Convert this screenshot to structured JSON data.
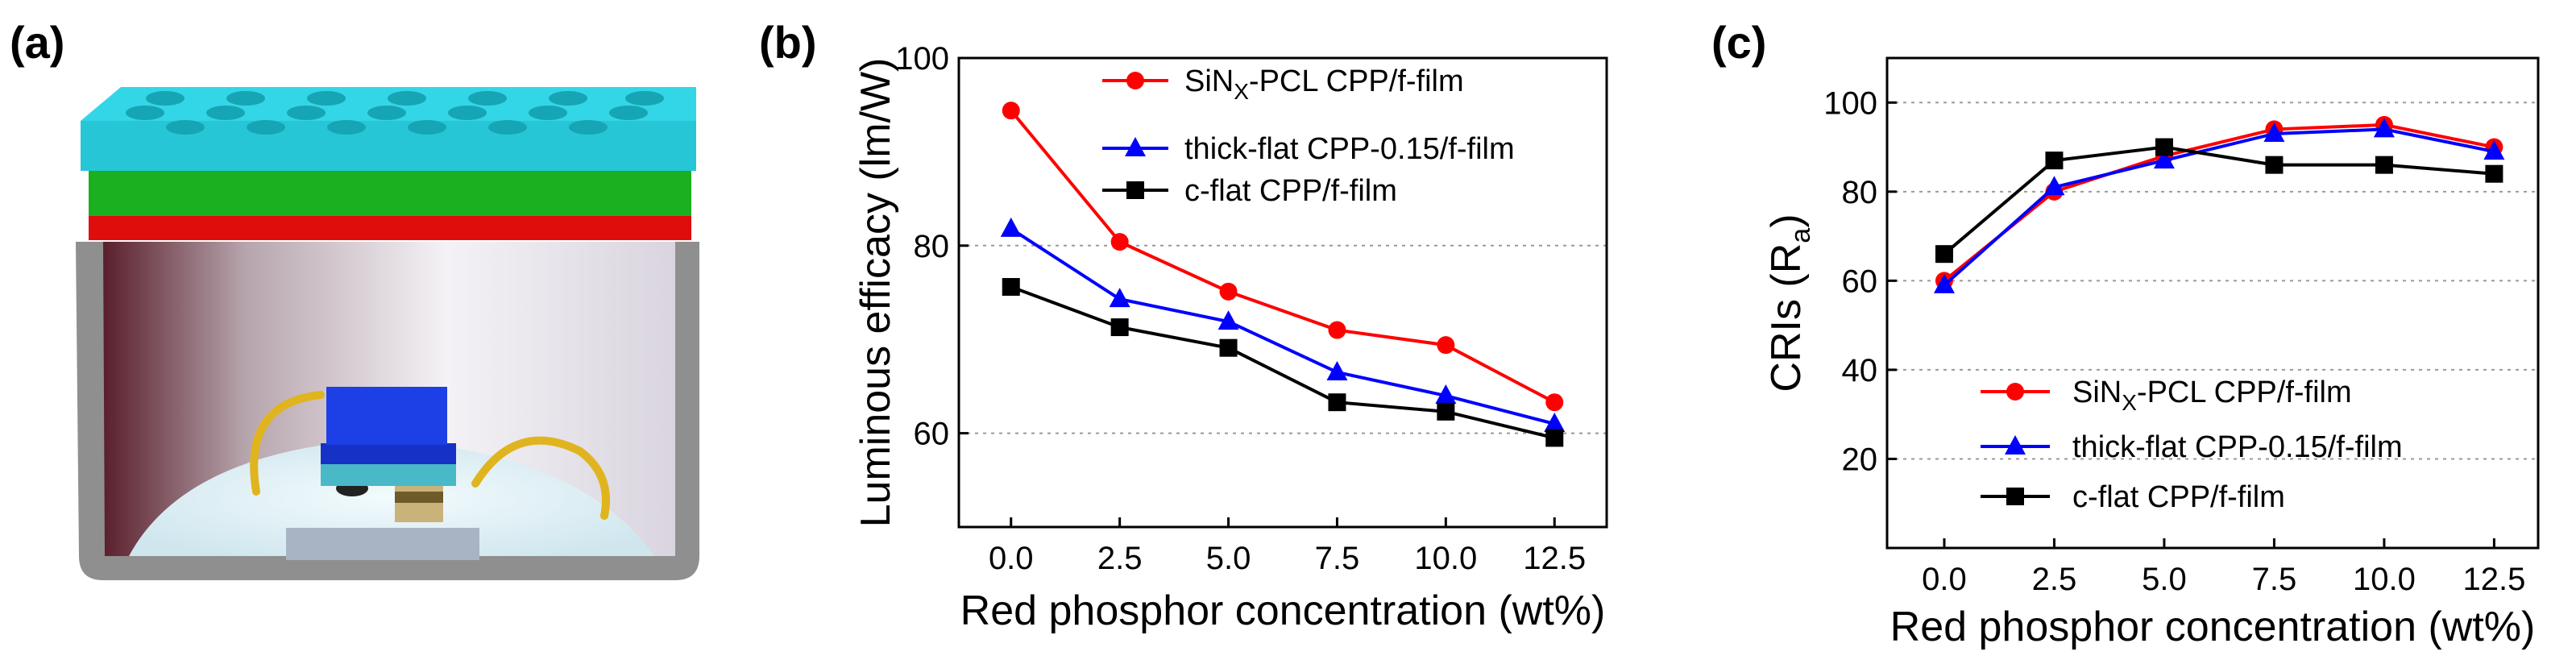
{
  "panels": {
    "a": {
      "label": "(a)"
    },
    "b": {
      "label": "(b)"
    },
    "c": {
      "label": "(c)"
    }
  },
  "chart_data": [
    {
      "id": "b",
      "type": "line",
      "xlabel": "Red phosphor concentration (wt%)",
      "ylabel": "Luminous efficacy (lm/W)",
      "x": [
        0.0,
        2.5,
        5.0,
        7.5,
        10.0,
        12.5
      ],
      "xticks": [
        "0.0",
        "2.5",
        "5.0",
        "7.5",
        "10.0",
        "12.5"
      ],
      "xlim": [
        -1.2,
        13.7
      ],
      "yticks": [
        "60",
        "80",
        "100"
      ],
      "ytick_values": [
        60,
        80,
        100
      ],
      "ylim": [
        50,
        100
      ],
      "grid_y": [
        60,
        80
      ],
      "legend_position": "top-right",
      "series": [
        {
          "name": "SiNX-PCL CPP/f-film",
          "name_main": "SiN",
          "name_sub": "X",
          "name_rest": "-PCL CPP/f-film",
          "marker": "circle",
          "color": "#ff0000",
          "values": [
            94.4,
            80.4,
            75.1,
            71.0,
            69.4,
            63.3
          ]
        },
        {
          "name": "thick-flat CPP-0.15/f-film",
          "name_main": "thick-flat CPP-0.15/f-film",
          "marker": "triangle",
          "color": "#0000ff",
          "values": [
            81.8,
            74.3,
            71.9,
            66.5,
            64.0,
            61.0
          ]
        },
        {
          "name": "c-flat CPP/f-film",
          "name_main": "c-flat CPP/f-film",
          "marker": "square",
          "color": "#000000",
          "values": [
            75.6,
            71.3,
            69.1,
            63.3,
            62.3,
            59.5
          ]
        }
      ]
    },
    {
      "id": "c",
      "type": "line",
      "xlabel": "Red phosphor concentration (wt%)",
      "ylabel": "CRIs (Ra)",
      "ylabel_main": "CRIs (R",
      "ylabel_sub": "a",
      "ylabel_end": ")",
      "x": [
        0.0,
        2.5,
        5.0,
        7.5,
        10.0,
        12.5
      ],
      "xticks": [
        "0.0",
        "2.5",
        "5.0",
        "7.5",
        "10.0",
        "12.5"
      ],
      "xlim": [
        -1.3,
        13.5
      ],
      "yticks": [
        "20",
        "40",
        "60",
        "80",
        "100"
      ],
      "ytick_values": [
        20,
        40,
        60,
        80,
        100
      ],
      "ylim": [
        0,
        110
      ],
      "grid_y": [
        20,
        40,
        60,
        80,
        100
      ],
      "legend_position": "bottom-center",
      "series": [
        {
          "name": "SiNX-PCL CPP/f-film",
          "name_main": "SiN",
          "name_sub": "X",
          "name_rest": "-PCL CPP/f-film",
          "marker": "circle",
          "color": "#ff0000",
          "values": [
            60,
            80,
            88,
            94,
            95,
            90
          ]
        },
        {
          "name": "thick-flat CPP-0.15/f-film",
          "name_main": "thick-flat CPP-0.15/f-film",
          "marker": "triangle",
          "color": "#0000ff",
          "values": [
            59,
            81,
            87,
            93,
            94,
            89
          ]
        },
        {
          "name": "c-flat CPP/f-film",
          "name_main": "c-flat CPP/f-film",
          "marker": "square",
          "color": "#000000",
          "values": [
            66,
            87,
            90,
            86,
            86,
            84
          ]
        }
      ]
    }
  ]
}
